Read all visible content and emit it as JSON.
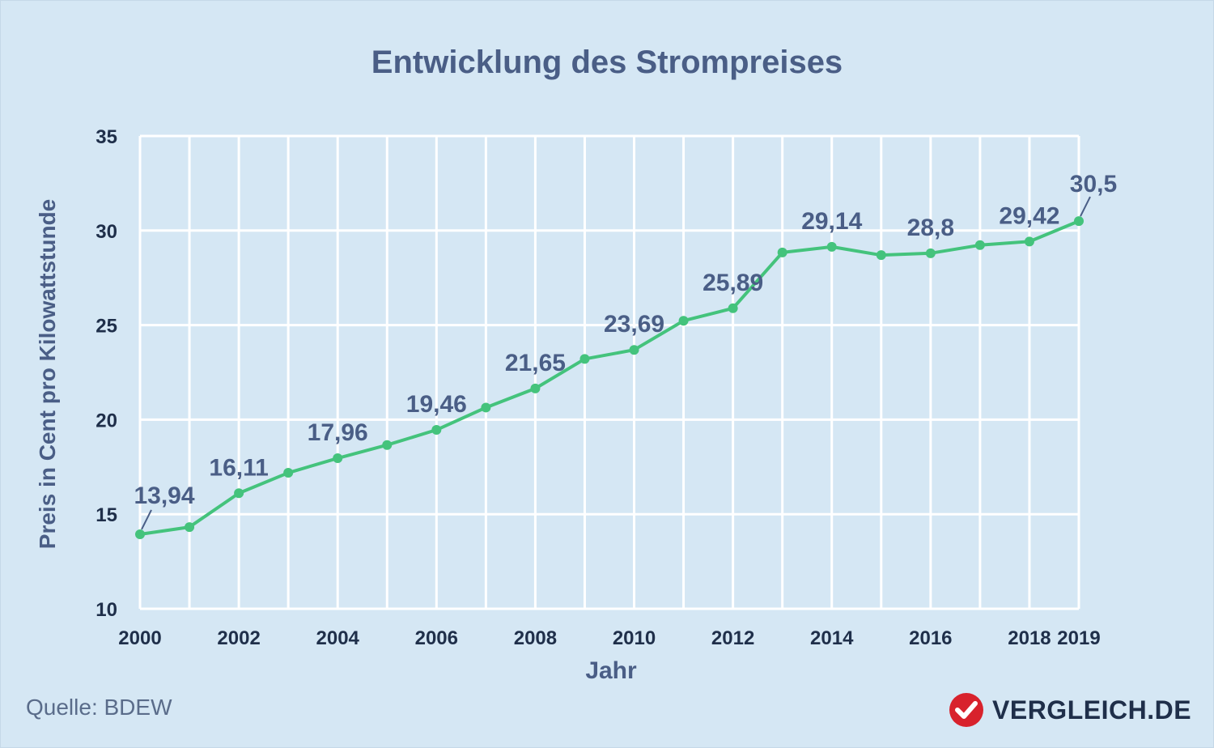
{
  "chart_data": {
    "type": "line",
    "title": "Entwicklung des Strompreises",
    "xlabel": "Jahr",
    "ylabel": "Preis in Cent pro Kilowattstunde",
    "ylim": [
      10,
      35
    ],
    "yticks": [
      "10",
      "15",
      "20",
      "25",
      "30",
      "35"
    ],
    "xlim": [
      2000,
      2019
    ],
    "xticks": [
      "2000",
      "2002",
      "2004",
      "2006",
      "2008",
      "2010",
      "2012",
      "2014",
      "2016",
      "2018",
      "2019"
    ],
    "grid": true,
    "x": [
      2000,
      2001,
      2002,
      2003,
      2004,
      2005,
      2006,
      2007,
      2008,
      2009,
      2010,
      2011,
      2012,
      2013,
      2014,
      2015,
      2016,
      2017,
      2018,
      2019
    ],
    "series": [
      {
        "values": [
          13.94,
          14.32,
          16.11,
          17.19,
          17.96,
          18.66,
          19.46,
          20.64,
          21.65,
          23.21,
          23.69,
          25.23,
          25.89,
          28.84,
          29.14,
          28.7,
          28.8,
          29.23,
          29.42,
          30.5
        ],
        "color": "#44c37c"
      }
    ],
    "data_labels": [
      {
        "x": 2000,
        "text": "13,94"
      },
      {
        "x": 2002,
        "text": "16,11"
      },
      {
        "x": 2004,
        "text": "17,96"
      },
      {
        "x": 2006,
        "text": "19,46"
      },
      {
        "x": 2008,
        "text": "21,65"
      },
      {
        "x": 2010,
        "text": "23,69"
      },
      {
        "x": 2012,
        "text": "25,89"
      },
      {
        "x": 2014,
        "text": "29,14"
      },
      {
        "x": 2016,
        "text": "28,8"
      },
      {
        "x": 2018,
        "text": "29,42"
      },
      {
        "x": 2019,
        "text": "30,5"
      }
    ]
  },
  "footer": {
    "source": "Quelle: BDEW",
    "brand": "VERGLEICH.DE",
    "brand_icon": "checkmark-badge-icon",
    "brand_color": "#d8222c"
  },
  "colors": {
    "background": "#d5e7f4",
    "grid": "#ffffff",
    "line": "#44c37c",
    "text": "#4a5e86"
  }
}
